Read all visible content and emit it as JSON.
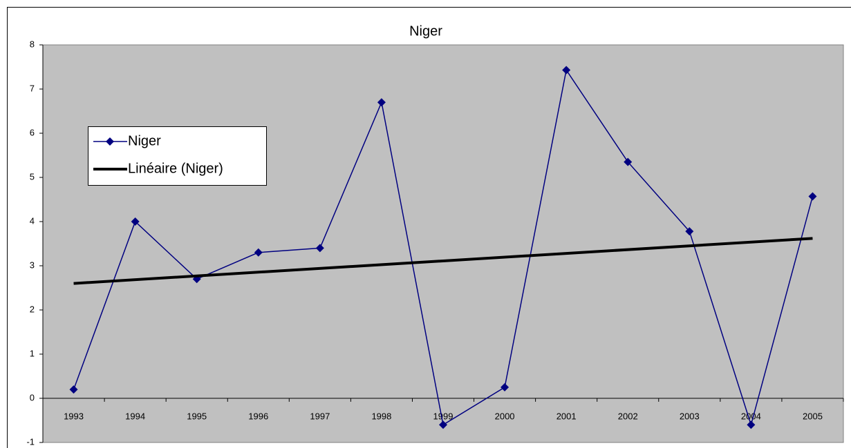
{
  "chart_data": {
    "type": "line",
    "title": "Niger",
    "categories": [
      "1993",
      "1994",
      "1995",
      "1996",
      "1997",
      "1998",
      "1999",
      "2000",
      "2001",
      "2002",
      "2003",
      "2004",
      "2005"
    ],
    "series": [
      {
        "name": "Niger",
        "color": "#000080",
        "values": [
          0.2,
          4.0,
          2.7,
          3.3,
          3.4,
          6.7,
          -0.6,
          0.25,
          7.43,
          5.35,
          3.78,
          -0.6,
          4.57
        ]
      },
      {
        "name": "Linéaire (Niger)",
        "color": "#000000",
        "values": [
          2.6,
          2.685,
          2.77,
          2.855,
          2.94,
          3.025,
          3.11,
          3.195,
          3.28,
          3.365,
          3.45,
          3.535,
          3.62
        ]
      }
    ],
    "ylim": [
      -1,
      8
    ],
    "yticks": [
      -1,
      0,
      1,
      2,
      3,
      4,
      5,
      6,
      7,
      8
    ],
    "grid": false,
    "legend": "left"
  }
}
